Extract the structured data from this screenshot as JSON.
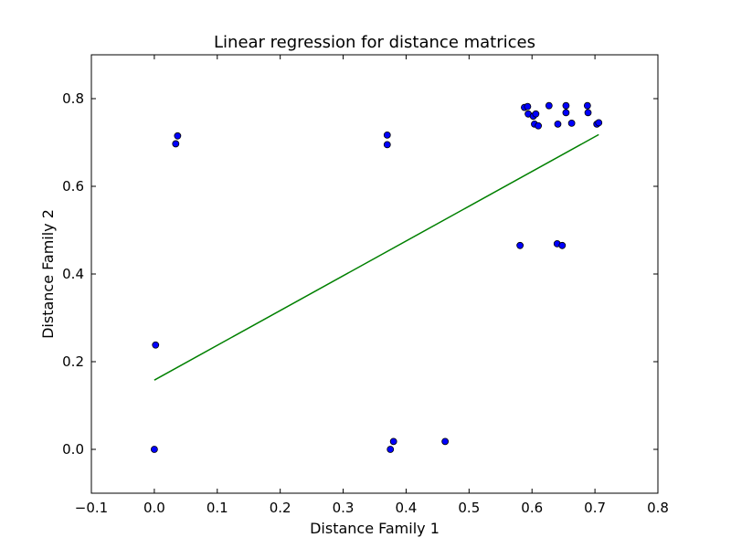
{
  "chart_data": {
    "type": "scatter",
    "title": "Linear regression for distance matrices",
    "xlabel": "Distance Family 1",
    "ylabel": "Distance Family 2",
    "xlim": [
      -0.1,
      0.8
    ],
    "ylim": [
      -0.1,
      0.9
    ],
    "x_ticks": [
      -0.1,
      0.0,
      0.1,
      0.2,
      0.3,
      0.4,
      0.5,
      0.6,
      0.7,
      0.8
    ],
    "x_tick_labels": [
      "−0.1",
      "0.0",
      "0.1",
      "0.2",
      "0.3",
      "0.4",
      "0.5",
      "0.6",
      "0.7",
      "0.8"
    ],
    "y_ticks": [
      0.0,
      0.2,
      0.4,
      0.6,
      0.8
    ],
    "y_tick_labels": [
      "0.0",
      "0.2",
      "0.4",
      "0.6",
      "0.8"
    ],
    "grid": false,
    "legend": "none",
    "points": [
      {
        "x": 0.0,
        "y": 0.0
      },
      {
        "x": 0.002,
        "y": 0.238
      },
      {
        "x": 0.034,
        "y": 0.697
      },
      {
        "x": 0.037,
        "y": 0.715
      },
      {
        "x": 0.37,
        "y": 0.717
      },
      {
        "x": 0.37,
        "y": 0.695
      },
      {
        "x": 0.375,
        "y": 0.0
      },
      {
        "x": 0.38,
        "y": 0.018
      },
      {
        "x": 0.462,
        "y": 0.018
      },
      {
        "x": 0.581,
        "y": 0.465
      },
      {
        "x": 0.64,
        "y": 0.469
      },
      {
        "x": 0.648,
        "y": 0.465
      },
      {
        "x": 0.588,
        "y": 0.78
      },
      {
        "x": 0.593,
        "y": 0.782
      },
      {
        "x": 0.594,
        "y": 0.765
      },
      {
        "x": 0.602,
        "y": 0.76
      },
      {
        "x": 0.606,
        "y": 0.765
      },
      {
        "x": 0.604,
        "y": 0.742
      },
      {
        "x": 0.61,
        "y": 0.738
      },
      {
        "x": 0.627,
        "y": 0.784
      },
      {
        "x": 0.641,
        "y": 0.742
      },
      {
        "x": 0.654,
        "y": 0.784
      },
      {
        "x": 0.654,
        "y": 0.768
      },
      {
        "x": 0.663,
        "y": 0.744
      },
      {
        "x": 0.688,
        "y": 0.784
      },
      {
        "x": 0.689,
        "y": 0.768
      },
      {
        "x": 0.703,
        "y": 0.742
      },
      {
        "x": 0.706,
        "y": 0.745
      }
    ],
    "regression_line": {
      "x": [
        0.0,
        0.706
      ],
      "y": [
        0.158,
        0.718
      ]
    },
    "colors": {
      "points": "#0000ff",
      "point_edge": "#000000",
      "line": "#008000"
    }
  }
}
